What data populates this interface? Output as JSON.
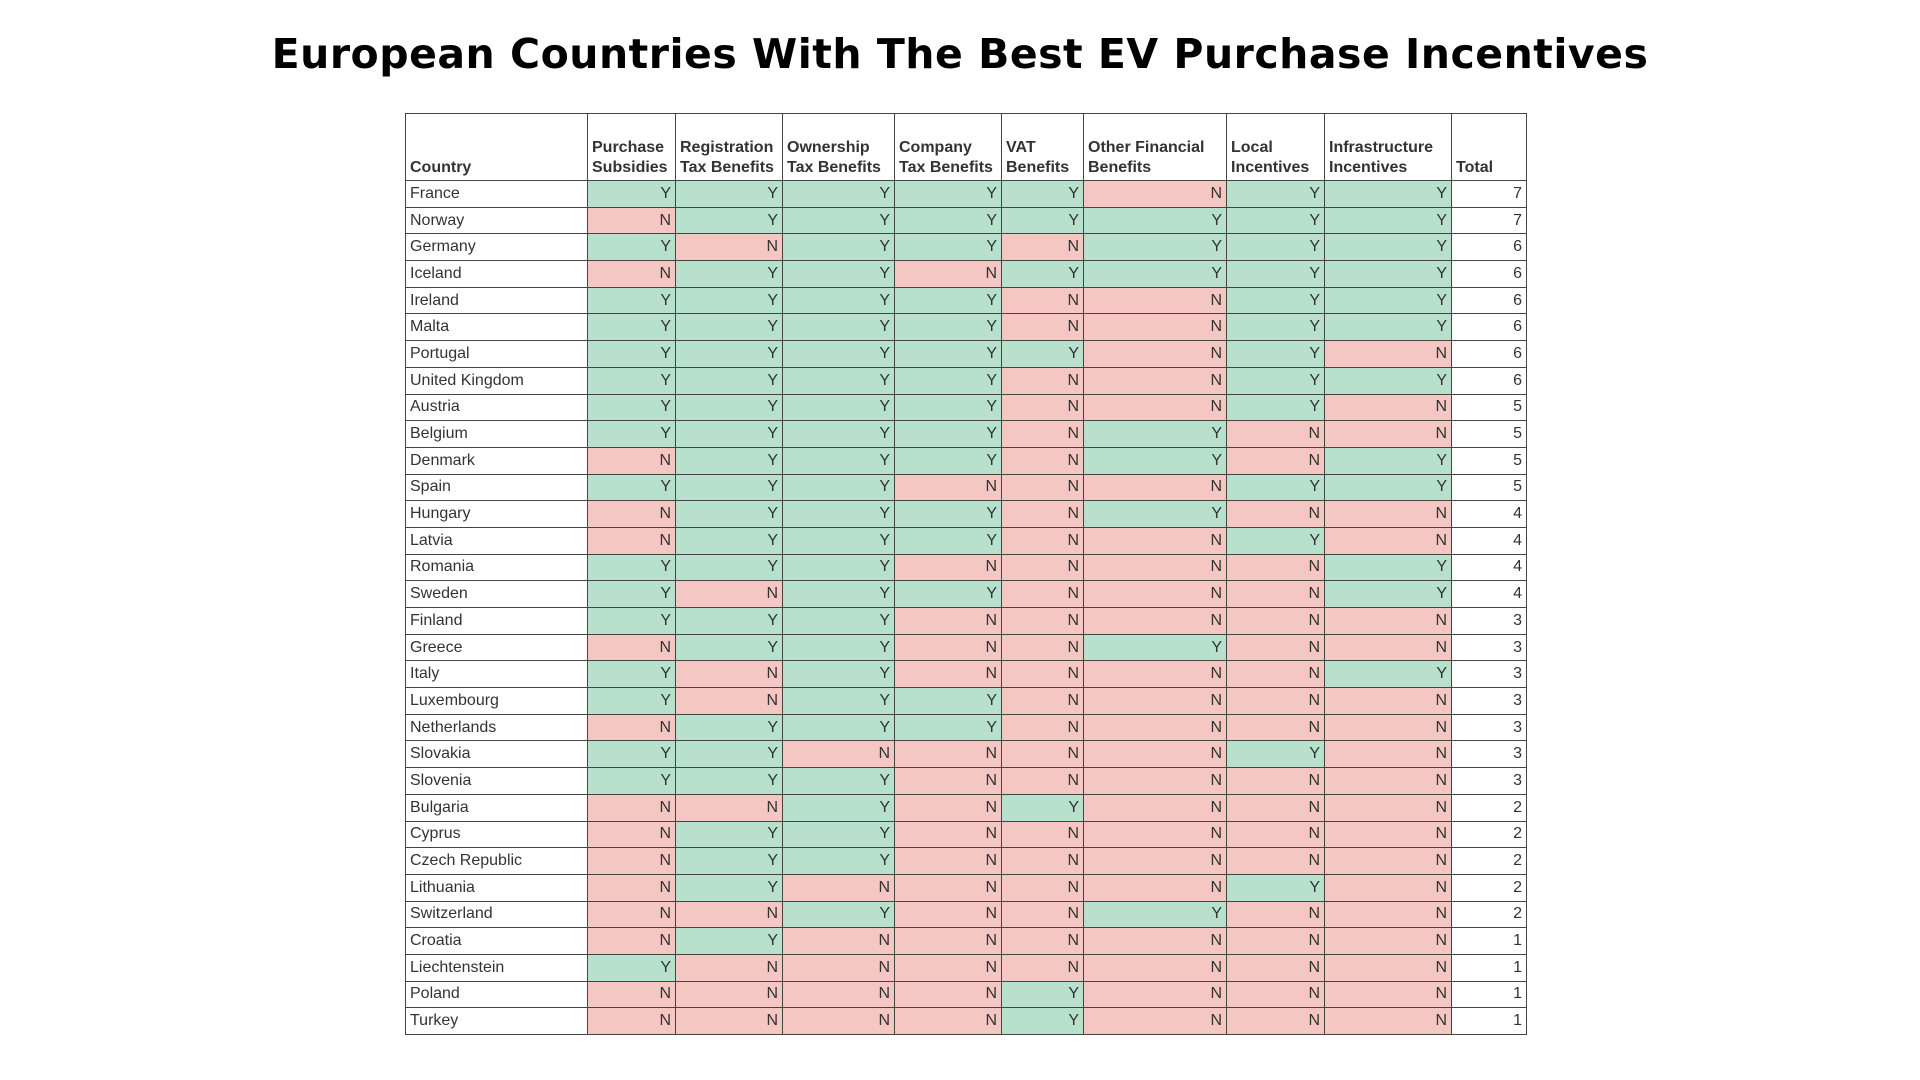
{
  "header": {
    "title": "European Countries With The Best EV Purchase Incentives"
  },
  "table": {
    "columns": [
      "Country",
      "Purchase Subsidies",
      "Registration Tax Benefits",
      "Ownership Tax Benefits",
      "Company Tax Benefits",
      "VAT Benefits",
      "Other Financial Benefits",
      "Local Incentives",
      "Infrastructure Incentives",
      "Total"
    ],
    "rows": [
      [
        "France",
        "Y",
        "Y",
        "Y",
        "Y",
        "Y",
        "N",
        "Y",
        "Y",
        7
      ],
      [
        "Norway",
        "N",
        "Y",
        "Y",
        "Y",
        "Y",
        "Y",
        "Y",
        "Y",
        7
      ],
      [
        "Germany",
        "Y",
        "N",
        "Y",
        "Y",
        "N",
        "Y",
        "Y",
        "Y",
        6
      ],
      [
        "Iceland",
        "N",
        "Y",
        "Y",
        "N",
        "Y",
        "Y",
        "Y",
        "Y",
        6
      ],
      [
        "Ireland",
        "Y",
        "Y",
        "Y",
        "Y",
        "N",
        "N",
        "Y",
        "Y",
        6
      ],
      [
        "Malta",
        "Y",
        "Y",
        "Y",
        "Y",
        "N",
        "N",
        "Y",
        "Y",
        6
      ],
      [
        "Portugal",
        "Y",
        "Y",
        "Y",
        "Y",
        "Y",
        "N",
        "Y",
        "N",
        6
      ],
      [
        "United Kingdom",
        "Y",
        "Y",
        "Y",
        "Y",
        "N",
        "N",
        "Y",
        "Y",
        6
      ],
      [
        "Austria",
        "Y",
        "Y",
        "Y",
        "Y",
        "N",
        "N",
        "Y",
        "N",
        5
      ],
      [
        "Belgium",
        "Y",
        "Y",
        "Y",
        "Y",
        "N",
        "Y",
        "N",
        "N",
        5
      ],
      [
        "Denmark",
        "N",
        "Y",
        "Y",
        "Y",
        "N",
        "Y",
        "N",
        "Y",
        5
      ],
      [
        "Spain",
        "Y",
        "Y",
        "Y",
        "N",
        "N",
        "N",
        "Y",
        "Y",
        5
      ],
      [
        "Hungary",
        "N",
        "Y",
        "Y",
        "Y",
        "N",
        "Y",
        "N",
        "N",
        4
      ],
      [
        "Latvia",
        "N",
        "Y",
        "Y",
        "Y",
        "N",
        "N",
        "Y",
        "N",
        4
      ],
      [
        "Romania",
        "Y",
        "Y",
        "Y",
        "N",
        "N",
        "N",
        "N",
        "Y",
        4
      ],
      [
        "Sweden",
        "Y",
        "N",
        "Y",
        "Y",
        "N",
        "N",
        "N",
        "Y",
        4
      ],
      [
        "Finland",
        "Y",
        "Y",
        "Y",
        "N",
        "N",
        "N",
        "N",
        "N",
        3
      ],
      [
        "Greece",
        "N",
        "Y",
        "Y",
        "N",
        "N",
        "Y",
        "N",
        "N",
        3
      ],
      [
        "Italy",
        "Y",
        "N",
        "Y",
        "N",
        "N",
        "N",
        "N",
        "Y",
        3
      ],
      [
        "Luxembourg",
        "Y",
        "N",
        "Y",
        "Y",
        "N",
        "N",
        "N",
        "N",
        3
      ],
      [
        "Netherlands",
        "N",
        "Y",
        "Y",
        "Y",
        "N",
        "N",
        "N",
        "N",
        3
      ],
      [
        "Slovakia",
        "Y",
        "Y",
        "N",
        "N",
        "N",
        "N",
        "Y",
        "N",
        3
      ],
      [
        "Slovenia",
        "Y",
        "Y",
        "Y",
        "N",
        "N",
        "N",
        "N",
        "N",
        3
      ],
      [
        "Bulgaria",
        "N",
        "N",
        "Y",
        "N",
        "Y",
        "N",
        "N",
        "N",
        2
      ],
      [
        "Cyprus",
        "N",
        "Y",
        "Y",
        "N",
        "N",
        "N",
        "N",
        "N",
        2
      ],
      [
        "Czech Republic",
        "N",
        "Y",
        "Y",
        "N",
        "N",
        "N",
        "N",
        "N",
        2
      ],
      [
        "Lithuania",
        "N",
        "Y",
        "N",
        "N",
        "N",
        "N",
        "Y",
        "N",
        2
      ],
      [
        "Switzerland",
        "N",
        "N",
        "Y",
        "N",
        "N",
        "Y",
        "N",
        "N",
        2
      ],
      [
        "Croatia",
        "N",
        "Y",
        "N",
        "N",
        "N",
        "N",
        "N",
        "N",
        1
      ],
      [
        "Liechtenstein",
        "Y",
        "N",
        "N",
        "N",
        "N",
        "N",
        "N",
        "N",
        1
      ],
      [
        "Poland",
        "N",
        "N",
        "N",
        "N",
        "Y",
        "N",
        "N",
        "N",
        1
      ],
      [
        "Turkey",
        "N",
        "N",
        "N",
        "N",
        "Y",
        "N",
        "N",
        "N",
        1
      ]
    ]
  }
}
